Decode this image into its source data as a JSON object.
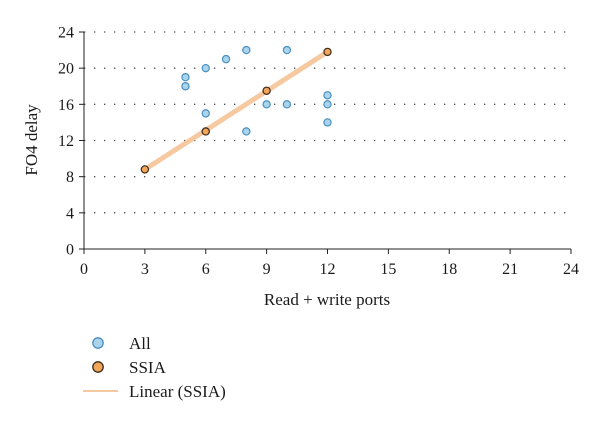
{
  "chart_data": {
    "type": "scatter",
    "xlabel": "Read + write ports",
    "ylabel": "FO4 delay",
    "xlim": [
      0,
      24
    ],
    "ylim": [
      0,
      24
    ],
    "xticks": [
      0,
      3,
      6,
      9,
      12,
      15,
      18,
      21,
      24
    ],
    "yticks": [
      0,
      4,
      8,
      12,
      16,
      20,
      24
    ],
    "grid": "horizontal-dotted",
    "legend_position": "bottom-left",
    "series": [
      {
        "name": "All",
        "kind": "scatter",
        "color": "#a9d4ec",
        "edge_color": "#4a8fbf",
        "points": [
          {
            "x": 5,
            "y": 19
          },
          {
            "x": 5,
            "y": 18
          },
          {
            "x": 6,
            "y": 20
          },
          {
            "x": 6,
            "y": 15
          },
          {
            "x": 7,
            "y": 21
          },
          {
            "x": 8,
            "y": 22
          },
          {
            "x": 8,
            "y": 13
          },
          {
            "x": 9,
            "y": 16
          },
          {
            "x": 10,
            "y": 22
          },
          {
            "x": 10,
            "y": 16
          },
          {
            "x": 12,
            "y": 17
          },
          {
            "x": 12,
            "y": 16
          },
          {
            "x": 12,
            "y": 14
          }
        ]
      },
      {
        "name": "SSIA",
        "kind": "scatter",
        "color": "#f3a55a",
        "edge_color": "#3a2a1a",
        "points": [
          {
            "x": 3,
            "y": 8.8
          },
          {
            "x": 6,
            "y": 13
          },
          {
            "x": 9,
            "y": 17.5
          },
          {
            "x": 12,
            "y": 21.8
          }
        ]
      },
      {
        "name": "Linear (SSIA)",
        "kind": "line",
        "color": "#f6c9a0",
        "points": [
          {
            "x": 3,
            "y": 8.8
          },
          {
            "x": 12,
            "y": 21.8
          }
        ]
      }
    ]
  }
}
